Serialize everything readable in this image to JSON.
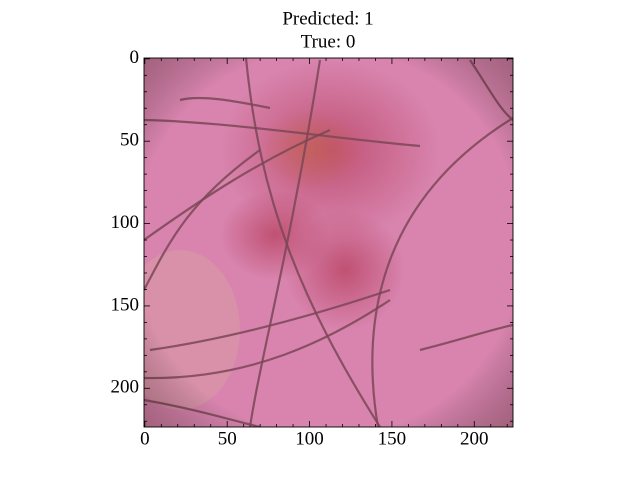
{
  "chart_data": {
    "type": "image",
    "title": [
      "Predicted: 1",
      "True: 0"
    ],
    "xlim": [
      -0.5,
      223.5
    ],
    "ylim": [
      223.5,
      -0.5
    ],
    "xticks": [
      0,
      50,
      100,
      150,
      200
    ],
    "yticks": [
      0,
      50,
      100,
      150,
      200
    ],
    "xminorticks": [
      10,
      20,
      30,
      40,
      60,
      70,
      80,
      90,
      110,
      120,
      130,
      140,
      160,
      170,
      180,
      190,
      210,
      220
    ],
    "yminorticks": [
      10,
      20,
      30,
      40,
      60,
      70,
      80,
      90,
      110,
      120,
      130,
      140,
      160,
      170,
      180,
      190,
      210,
      220
    ]
  }
}
